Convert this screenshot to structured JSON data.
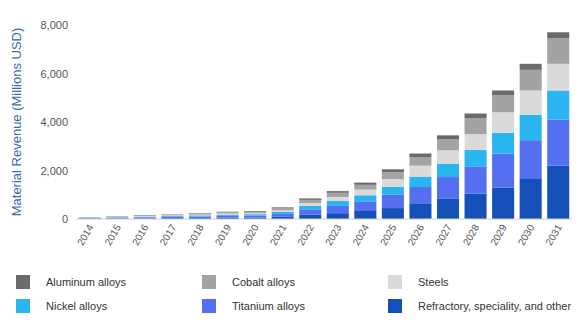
{
  "chart_data": {
    "type": "bar",
    "stacked": true,
    "grid": false,
    "legend": "bottom",
    "y_label": "Material Revenue (Millions USD)",
    "categories": [
      "2014",
      "2015",
      "2016",
      "2017",
      "2018",
      "2019",
      "2020",
      "2021",
      "2022",
      "2023",
      "2024",
      "2025",
      "2026",
      "2027",
      "2028",
      "2029",
      "2030",
      "2031"
    ],
    "ylim": [
      0,
      8000
    ],
    "yticks": [
      0,
      {
        "value": 2000,
        "label": "2,000"
      },
      {
        "value": 4000,
        "label": "4,000"
      },
      {
        "value": 6000,
        "label": "6,000"
      },
      {
        "value": 8000,
        "label": "8,000"
      }
    ],
    "series": [
      {
        "name": "Refractory, speciality, and other",
        "color": "#1550b8",
        "values": [
          15,
          20,
          30,
          35,
          45,
          55,
          60,
          90,
          180,
          240,
          330,
          450,
          620,
          830,
          1050,
          1300,
          1650,
          2200
        ]
      },
      {
        "name": "Titanium alloys",
        "color": "#5470f0",
        "values": [
          20,
          30,
          40,
          50,
          60,
          75,
          80,
          120,
          220,
          300,
          400,
          550,
          700,
          900,
          1100,
          1400,
          1600,
          1900
        ]
      },
      {
        "name": "Nickel alloys",
        "color": "#2bb5f0",
        "values": [
          15,
          25,
          30,
          35,
          45,
          55,
          60,
          80,
          140,
          200,
          250,
          330,
          430,
          550,
          700,
          850,
          1050,
          1200
        ]
      },
      {
        "name": "Steels",
        "color": "#dadada",
        "values": [
          12,
          20,
          25,
          30,
          35,
          45,
          50,
          70,
          120,
          170,
          230,
          320,
          450,
          550,
          650,
          850,
          1000,
          1100
        ]
      },
      {
        "name": "Cobalt alloys",
        "color": "#a3a3a3",
        "values": [
          10,
          15,
          20,
          25,
          35,
          45,
          50,
          80,
          130,
          170,
          200,
          280,
          350,
          450,
          650,
          700,
          850,
          1050
        ]
      },
      {
        "name": "Aluminum alloys",
        "color": "#6b6b6b",
        "values": [
          8,
          10,
          15,
          15,
          20,
          25,
          30,
          40,
          60,
          70,
          90,
          120,
          150,
          170,
          200,
          200,
          250,
          250
        ]
      }
    ]
  }
}
